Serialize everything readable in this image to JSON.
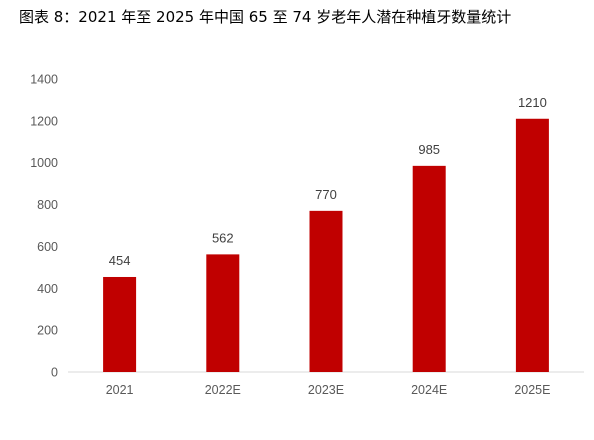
{
  "figure": {
    "title": "图表 8：2021 年至 2025 年中国 65 至 74 岁老年人潜在种植牙数量统计"
  },
  "colors": {
    "bar": "#c00000",
    "axis": "#d9d9d9",
    "tick_text": "#595959",
    "label_text": "#404040"
  },
  "chart_data": {
    "type": "bar",
    "title": "",
    "xlabel": "",
    "ylabel": "",
    "categories": [
      "2021",
      "2022E",
      "2023E",
      "2024E",
      "2025E"
    ],
    "values": [
      454,
      562,
      770,
      985,
      1210
    ],
    "data_labels": [
      "454",
      "562",
      "770",
      "985",
      "1210"
    ],
    "ylim": [
      0,
      1400
    ],
    "yticks": [
      0,
      200,
      400,
      600,
      800,
      1000,
      1200,
      1400
    ],
    "grid": false,
    "legend": "none"
  }
}
